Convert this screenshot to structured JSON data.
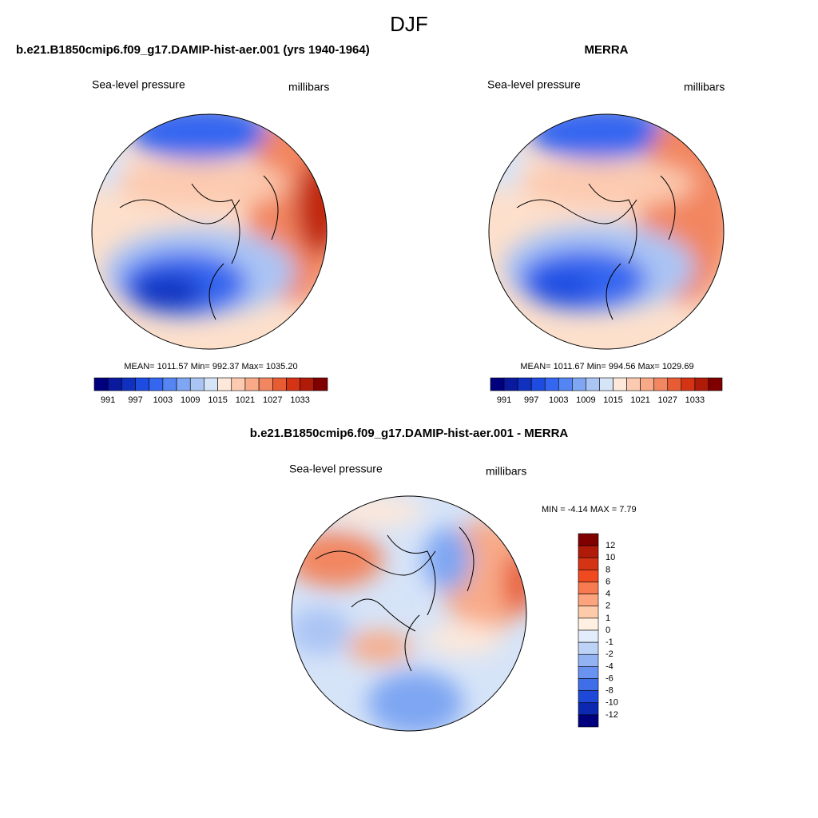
{
  "title": "DJF",
  "panels": [
    {
      "title": "b.e21.B1850cmip6.f09_g17.DAMIP-hist-aer.001 (yrs 1940-1964)",
      "variable": "Sea-level pressure",
      "units": "millibars",
      "stats": "MEAN= 1011.57  Min= 992.37  Max= 1035.20",
      "colorbar": {
        "labels": [
          "991",
          "997",
          "1003",
          "1009",
          "1015",
          "1021",
          "1027",
          "1033"
        ],
        "colors": [
          "#00007f",
          "#0a1a9e",
          "#1030c0",
          "#1e4be0",
          "#3466f0",
          "#5585f2",
          "#7ea6f2",
          "#aac4f4",
          "#d6e4f8",
          "#fde8da",
          "#fccab0",
          "#f8aa88",
          "#f28660",
          "#e85c34",
          "#d43414",
          "#b01a08",
          "#800000"
        ]
      }
    },
    {
      "title": "MERRA",
      "variable": "Sea-level pressure",
      "units": "millibars",
      "stats": "MEAN= 1011.67  Min= 994.56  Max= 1029.69",
      "colorbar": {
        "labels": [
          "991",
          "997",
          "1003",
          "1009",
          "1015",
          "1021",
          "1027",
          "1033"
        ],
        "colors": [
          "#00007f",
          "#0a1a9e",
          "#1030c0",
          "#1e4be0",
          "#3466f0",
          "#5585f2",
          "#7ea6f2",
          "#aac4f4",
          "#d6e4f8",
          "#fde8da",
          "#fccab0",
          "#f8aa88",
          "#f28660",
          "#e85c34",
          "#d43414",
          "#b01a08",
          "#800000"
        ]
      }
    }
  ],
  "difference": {
    "title": "b.e21.B1850cmip6.f09_g17.DAMIP-hist-aer.001 - MERRA",
    "variable": "Sea-level pressure",
    "units": "millibars",
    "stats": "MIN =  -4.14 MAX =   7.79",
    "colorbar": {
      "labels": [
        "12",
        "10",
        "8",
        "6",
        "4",
        "2",
        "1",
        "0",
        "-1",
        "-2",
        "-4",
        "-6",
        "-8",
        "-10",
        "-12"
      ],
      "colors": [
        "#800000",
        "#b01a08",
        "#d43414",
        "#f04a20",
        "#f87a50",
        "#fba47e",
        "#fdcbaa",
        "#fff0e2",
        "#e2ecfa",
        "#bcd2f6",
        "#92b2f2",
        "#6a92f0",
        "#3e6ee8",
        "#1e48d8",
        "#0c28b0",
        "#00007f"
      ]
    }
  }
}
